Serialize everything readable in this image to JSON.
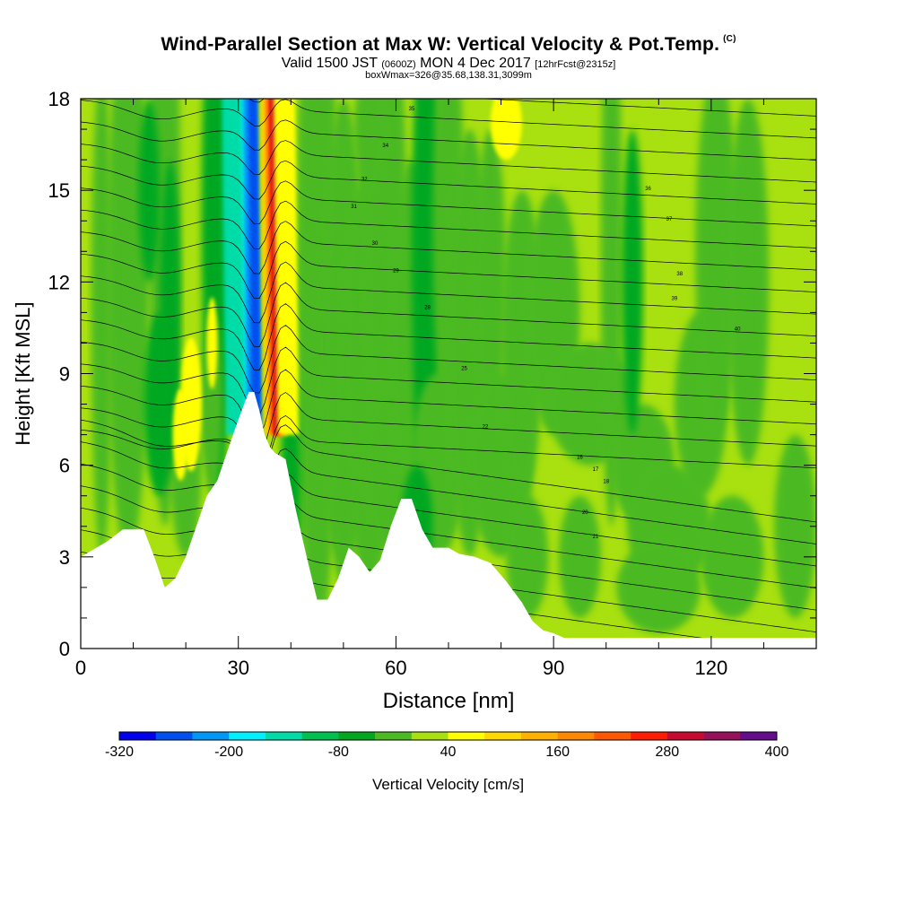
{
  "header": {
    "title": "Wind-Parallel Section at Max W: Vertical Velocity & Pot.Temp.",
    "copyright": "(C)",
    "valid_prefix": "Valid 1500 JST",
    "valid_utc": "(0600Z)",
    "valid_date": "MON 4 Dec 2017",
    "forecast": "[12hrFcst@2315z]",
    "box_info": "boxWmax=326@35.68,138.31,3099m"
  },
  "chart_data": {
    "type": "heatmap",
    "xlabel": "Distance [nm]",
    "ylabel": "Height [Kft MSL]",
    "xlim": [
      0,
      140
    ],
    "ylim": [
      0,
      18
    ],
    "x_ticks": [
      0,
      30,
      60,
      90,
      120
    ],
    "y_ticks": [
      0,
      3,
      6,
      9,
      12,
      15,
      18
    ],
    "terrain_profile": [
      [
        0,
        3.0
      ],
      [
        2,
        3.2
      ],
      [
        5,
        3.5
      ],
      [
        8,
        3.9
      ],
      [
        12,
        3.9
      ],
      [
        14,
        3.0
      ],
      [
        16,
        2.0
      ],
      [
        18,
        2.3
      ],
      [
        20,
        3.0
      ],
      [
        22,
        4.0
      ],
      [
        24,
        5.0
      ],
      [
        26,
        5.5
      ],
      [
        28,
        6.5
      ],
      [
        30,
        7.5
      ],
      [
        32,
        8.4
      ],
      [
        33,
        8.4
      ],
      [
        34,
        7.8
      ],
      [
        35,
        7.0
      ],
      [
        36,
        6.6
      ],
      [
        37,
        6.4
      ],
      [
        39,
        6.2
      ],
      [
        41,
        4.5
      ],
      [
        43,
        3.0
      ],
      [
        44,
        2.3
      ],
      [
        45,
        1.6
      ],
      [
        47,
        1.6
      ],
      [
        49,
        2.3
      ],
      [
        51,
        3.3
      ],
      [
        53,
        3.0
      ],
      [
        55,
        2.5
      ],
      [
        57,
        2.9
      ],
      [
        59,
        4.0
      ],
      [
        61,
        4.9
      ],
      [
        63,
        4.9
      ],
      [
        65,
        3.9
      ],
      [
        67,
        3.3
      ],
      [
        70,
        3.3
      ],
      [
        72,
        3.1
      ],
      [
        75,
        3.0
      ],
      [
        78,
        2.8
      ],
      [
        81,
        2.2
      ],
      [
        84,
        1.5
      ],
      [
        86,
        0.9
      ],
      [
        88,
        0.6
      ],
      [
        90,
        0.5
      ],
      [
        92,
        0.35
      ],
      [
        140,
        0.35
      ]
    ],
    "colorbar": {
      "label": "Vertical Velocity [cm/s]",
      "tick_labels": [
        "-320",
        "-200",
        "-80",
        "40",
        "160",
        "280",
        "400"
      ],
      "colors": [
        "#0000ee",
        "#0050f0",
        "#0098f8",
        "#00f0ff",
        "#00dca8",
        "#00c050",
        "#00a820",
        "#4cba22",
        "#a8e010",
        "#ffff00",
        "#ffd800",
        "#ffb000",
        "#ff8800",
        "#ff5800",
        "#ff1c00",
        "#c80a30",
        "#96105a",
        "#640c8c"
      ]
    },
    "theta_contour_labels": [
      "16",
      "17",
      "18",
      "20",
      "21",
      "22",
      "25",
      "28",
      "29",
      "30",
      "31",
      "32",
      "34",
      "35",
      "36",
      "37",
      "38",
      "39",
      "40"
    ]
  }
}
